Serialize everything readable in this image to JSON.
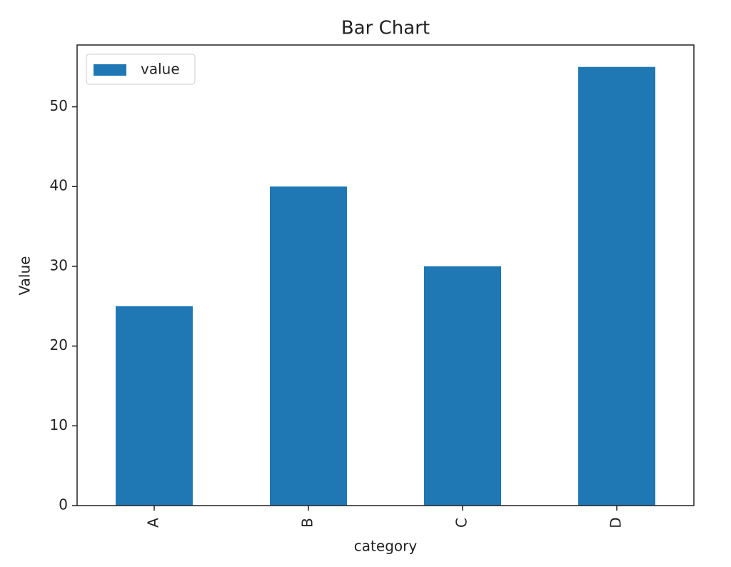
{
  "chart_data": {
    "type": "bar",
    "title": "Bar Chart",
    "xlabel": "category",
    "ylabel": "Value",
    "categories": [
      "A",
      "B",
      "C",
      "D"
    ],
    "series": [
      {
        "name": "value",
        "color": "#1f77b4",
        "values": [
          25,
          40,
          30,
          55
        ]
      }
    ],
    "ylim": [
      0,
      57.75
    ],
    "yticks": [
      0,
      10,
      20,
      30,
      40,
      50
    ],
    "grid": false,
    "legend": "upper left"
  }
}
